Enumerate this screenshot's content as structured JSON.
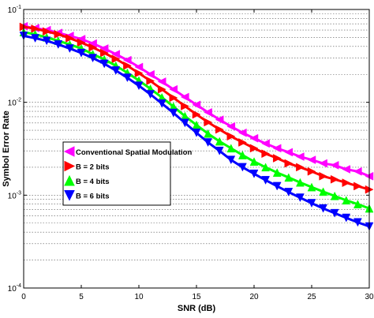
{
  "chart_data": {
    "type": "line",
    "title": "",
    "xlabel": "SNR (dB)",
    "ylabel": "Symbol Error Rate",
    "xlim": [
      0,
      30
    ],
    "ylim": [
      0.0001,
      0.1
    ],
    "yscale": "log",
    "grid": "y-dotted",
    "legend_position": "center-left",
    "x_ticks": [
      "0",
      "5",
      "10",
      "15",
      "20",
      "25",
      "30"
    ],
    "y_ticks": [
      {
        "base": "10",
        "exp": "-1",
        "value": 0.1
      },
      {
        "base": "10",
        "exp": "-2",
        "value": 0.01
      },
      {
        "base": "10",
        "exp": "-3",
        "value": 0.001
      },
      {
        "base": "10",
        "exp": "-4",
        "value": 0.0001
      }
    ],
    "x": [
      0,
      1,
      2,
      3,
      4,
      5,
      6,
      7,
      8,
      9,
      10,
      11,
      12,
      13,
      14,
      15,
      16,
      17,
      18,
      19,
      20,
      21,
      22,
      23,
      24,
      25,
      26,
      27,
      28,
      29,
      30
    ],
    "series": [
      {
        "name": "Conventional Spatial Modulation",
        "color": "#ff00ff",
        "marker": "triangle-left",
        "values": [
          0.066,
          0.063,
          0.06,
          0.056,
          0.052,
          0.048,
          0.043,
          0.038,
          0.033,
          0.0285,
          0.024,
          0.02,
          0.0167,
          0.0138,
          0.0114,
          0.0094,
          0.0078,
          0.0065,
          0.0055,
          0.0047,
          0.0041,
          0.0036,
          0.0032,
          0.0029,
          0.0026,
          0.0024,
          0.0022,
          0.0021,
          0.0019,
          0.0018,
          0.0016
        ]
      },
      {
        "name": "B = 2 bits",
        "color": "#ff0000",
        "marker": "triangle-right",
        "values": [
          0.065,
          0.062,
          0.058,
          0.054,
          0.049,
          0.044,
          0.039,
          0.034,
          0.0293,
          0.0248,
          0.0206,
          0.017,
          0.0138,
          0.0112,
          0.0091,
          0.0074,
          0.0061,
          0.0051,
          0.0043,
          0.0037,
          0.0032,
          0.0028,
          0.0025,
          0.0022,
          0.002,
          0.0018,
          0.0016,
          0.00148,
          0.00136,
          0.00125,
          0.00115
        ]
      },
      {
        "name": "B = 4 bits",
        "color": "#00ff00",
        "marker": "triangle-up",
        "values": [
          0.057,
          0.054,
          0.05,
          0.046,
          0.042,
          0.038,
          0.033,
          0.029,
          0.0248,
          0.0208,
          0.0172,
          0.014,
          0.0113,
          0.009,
          0.0071,
          0.0057,
          0.0046,
          0.0038,
          0.0032,
          0.0027,
          0.0023,
          0.002,
          0.00175,
          0.00155,
          0.00137,
          0.00122,
          0.00109,
          0.00098,
          0.00088,
          0.0008,
          0.00072
        ]
      },
      {
        "name": "B = 6 bits",
        "color": "#0000ff",
        "marker": "triangle-down",
        "values": [
          0.052,
          0.049,
          0.046,
          0.042,
          0.038,
          0.034,
          0.03,
          0.026,
          0.022,
          0.0184,
          0.0151,
          0.0122,
          0.0097,
          0.0077,
          0.006,
          0.0047,
          0.0037,
          0.003,
          0.0024,
          0.002,
          0.0017,
          0.00145,
          0.00125,
          0.00108,
          0.00094,
          0.00082,
          0.00072,
          0.00064,
          0.00057,
          0.00051,
          0.00046
        ]
      }
    ]
  }
}
